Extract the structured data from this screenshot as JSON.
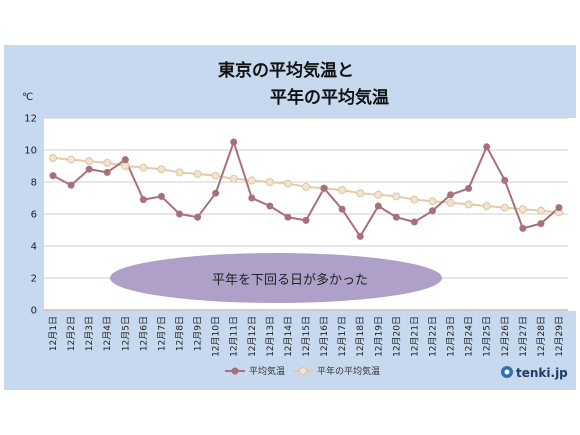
{
  "chart_data": {
    "type": "line",
    "title_lines": [
      "東京の平均気温と",
      "平年の平均気温"
    ],
    "ylabel": "℃",
    "ylim": [
      0,
      12
    ],
    "yticks": [
      0,
      2,
      4,
      6,
      8,
      10,
      12
    ],
    "grid": true,
    "categories": [
      "12月1日",
      "12月2日",
      "12月3日",
      "12月4日",
      "12月5日",
      "12月6日",
      "12月7日",
      "12月8日",
      "12月9日",
      "12月10日",
      "12月11日",
      "12月12日",
      "12月13日",
      "12月14日",
      "12月15日",
      "12月16日",
      "12月17日",
      "12月18日",
      "12月19日",
      "12月20日",
      "12月21日",
      "12月22日",
      "12月23日",
      "12月24日",
      "12月25日",
      "12月26日",
      "12月27日",
      "12月28日",
      "12月29日"
    ],
    "series": [
      {
        "name": "平均気温",
        "color": "#a8707c",
        "values": [
          8.4,
          7.8,
          8.8,
          8.6,
          9.4,
          6.9,
          7.1,
          6.0,
          5.8,
          7.3,
          10.5,
          7.0,
          6.5,
          5.8,
          5.6,
          7.6,
          6.3,
          4.6,
          6.5,
          5.8,
          5.5,
          6.2,
          7.2,
          7.6,
          10.2,
          8.1,
          5.1,
          5.4,
          6.4
        ]
      },
      {
        "name": "平年の平均気温",
        "color": "#e6c9a8",
        "values": [
          9.5,
          9.4,
          9.3,
          9.2,
          9.0,
          8.9,
          8.8,
          8.6,
          8.5,
          8.4,
          8.2,
          8.1,
          8.0,
          7.9,
          7.7,
          7.6,
          7.5,
          7.3,
          7.2,
          7.1,
          6.9,
          6.8,
          6.7,
          6.6,
          6.5,
          6.4,
          6.3,
          6.2,
          6.1
        ]
      }
    ],
    "annotation": "平年を下回る日が多かった",
    "legend_position": "bottom-center"
  },
  "logo_text": "tenki.jp",
  "colors": {
    "background": "#c6d9ef",
    "plot_background": "#ffffff",
    "ellipse": "#aea0c8",
    "grid": "#cfcfcf"
  }
}
